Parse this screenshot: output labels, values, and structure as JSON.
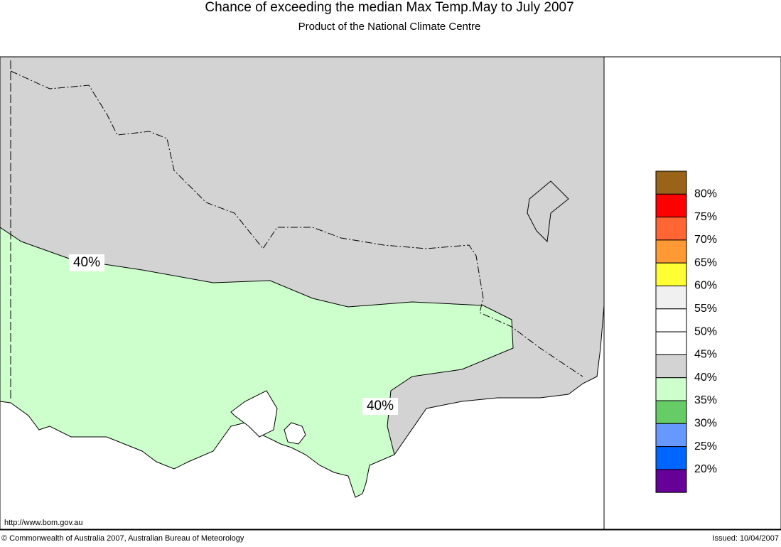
{
  "header": {
    "title": "Chance of exceeding the median Max Temp.May to July 2007",
    "subtitle": "Product of the National Climate Centre"
  },
  "map": {
    "contour_labels": [
      "40%",
      "40%"
    ],
    "url": "http://www.bom.gov.au"
  },
  "legend": {
    "labels": [
      "80%",
      "75%",
      "70%",
      "65%",
      "60%",
      "55%",
      "50%",
      "45%",
      "40%",
      "35%",
      "30%",
      "25%",
      "20%"
    ],
    "colors": [
      "#9a6418",
      "#ff0000",
      "#ff6633",
      "#ff9933",
      "#ffff33",
      "#f0f0f0",
      "#ffffff",
      "#ffffff",
      "#d3d3d3",
      "#ccffcc",
      "#66cc66",
      "#6699ff",
      "#0066ff",
      "#660099"
    ]
  },
  "footer": {
    "copyright": "© Commonwealth of Australia 2007, Australian Bureau of Meteorology",
    "issued": "Issued: 10/04/2007"
  }
}
